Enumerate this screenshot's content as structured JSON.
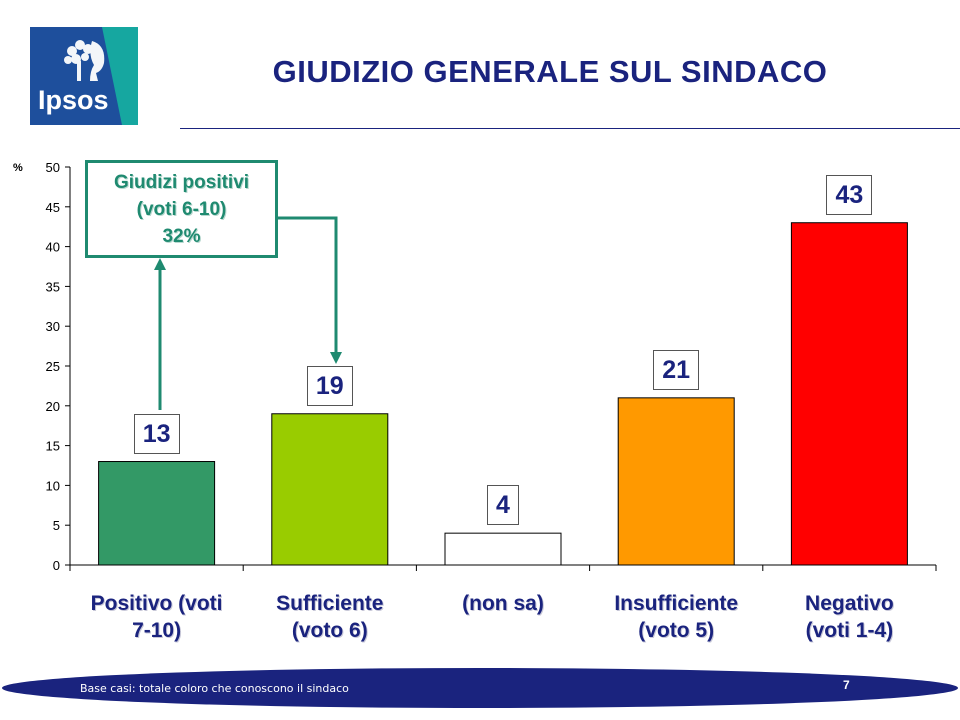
{
  "header": {
    "logo_text": "Ipsos",
    "title": "GIUDIZIO GENERALE SUL SINDACO"
  },
  "callout": {
    "line1": "Giudizi positivi",
    "line2": "(voti 6-10)",
    "line3": "32%"
  },
  "chart_data": {
    "type": "bar",
    "title": "GIUDIZIO GENERALE SUL SINDACO",
    "ylabel": "%",
    "ylim": [
      0,
      50
    ],
    "yticks": [
      0,
      5,
      10,
      15,
      20,
      25,
      30,
      35,
      40,
      45,
      50
    ],
    "categories": [
      {
        "line1": "Positivo (voti",
        "line2": "7-10)"
      },
      {
        "line1": "Sufficiente",
        "line2": "(voto 6)"
      },
      {
        "line1": "(non sa)",
        "line2": ""
      },
      {
        "line1": "Insufficiente",
        "line2": "(voto 5)"
      },
      {
        "line1": "Negativo",
        "line2": "(voti 1-4)"
      }
    ],
    "values": [
      13,
      19,
      4,
      21,
      43
    ],
    "colors": [
      "#339966",
      "#99cc00",
      "#ffffff",
      "#ff9900",
      "#ff0000"
    ],
    "grid": false
  },
  "footer": {
    "note": "Base casi: totale coloro che conoscono il sindaco",
    "page_number": "7"
  }
}
